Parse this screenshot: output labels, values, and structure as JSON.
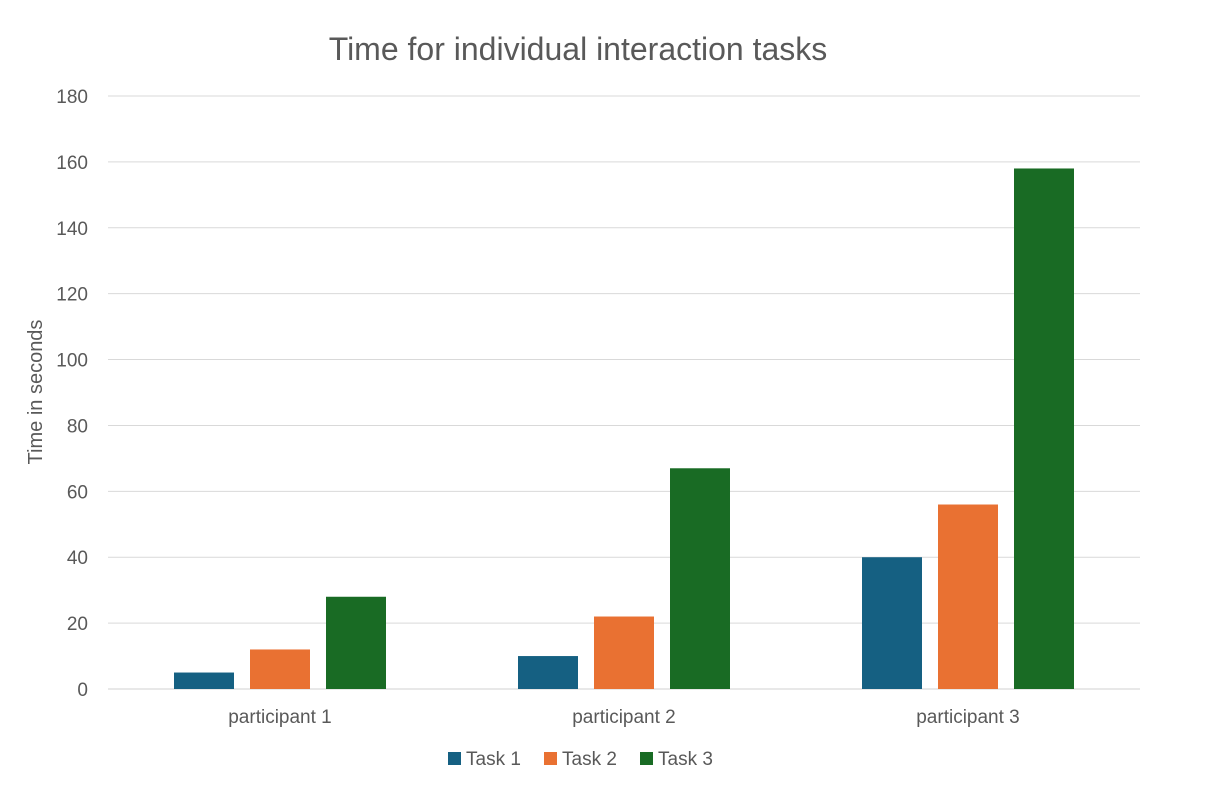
{
  "chart_data": {
    "type": "bar",
    "title": "Time for individual interaction tasks",
    "xlabel": "",
    "ylabel": "Time in seconds",
    "categories": [
      "participant 1",
      "participant 2",
      "participant 3"
    ],
    "series": [
      {
        "name": "Task 1",
        "values": [
          5,
          10,
          40
        ],
        "color": "#156082"
      },
      {
        "name": "Task 2",
        "values": [
          12,
          22,
          56
        ],
        "color": "#E97132"
      },
      {
        "name": "Task 3",
        "values": [
          28,
          67,
          158
        ],
        "color": "#196B24"
      }
    ],
    "ylim": [
      0,
      180
    ],
    "yticks": [
      0,
      20,
      40,
      60,
      80,
      100,
      120,
      140,
      160,
      180
    ],
    "grid": true,
    "legend": "bottom"
  }
}
